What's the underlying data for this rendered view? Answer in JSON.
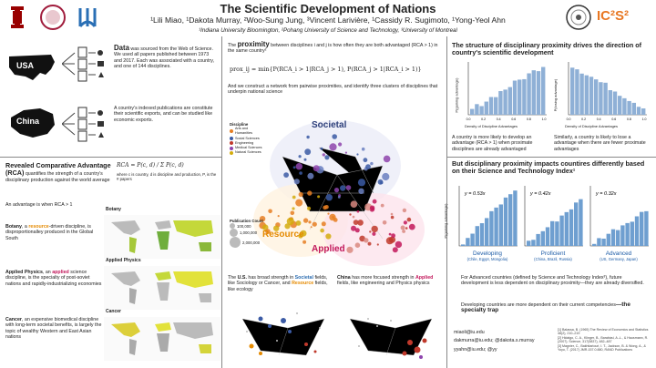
{
  "header": {
    "title": "The Scientific Development of Nations",
    "authors": "¹Lili Miao, ¹Dakota Murray, ²Woo-Sung Jung, ³Vincent Larivière, ¹Cassidy R. Sugimoto, ¹Yong-Yeol Ahn",
    "affiliations": "¹Indiana University Bloomington, ²Pohang University of Science and Technology, ³University of Montreal",
    "ic2s2": "IC²S²"
  },
  "data_section": {
    "lead": "Data",
    "text": " was sourced from the Web of Science. We used all papers published between 1973 and 2017. Each was associated with a country, and one of 144 disciplines.",
    "usa_label": "USA",
    "china_label": "China",
    "export_text": "A country's indexed publications are constitute their scientific exports, and can be studied like economic exports."
  },
  "rca_section": {
    "title": "Revealed Comparative Advantage (RCA)",
    "text": " quantifies the strength of a country's disciplinary production against the world average",
    "advantage": "An advantage is when RCA > 1",
    "formula_lhs": "RCA",
    "formula_frac": "P(c, d) / Σ P(c, d)",
    "formula_note": "where c is country, d is discipline and production, P, is the # papers",
    "botany_lead": "Botany",
    "botany_mid": ", a ",
    "botany_hl": "resource",
    "botany_text": "-driven discipline, is disproportionalley produced in the Global South",
    "physics_lead": "Applied Physics",
    "physics_mid": ", an ",
    "physics_hl": "applied",
    "physics_text": " science discipline, is the specialty of post-soviet nations and rapidly-industrializing economies",
    "cancer_lead": "Cancer",
    "cancer_text": ", an expensive biomedical discipline with long-term societal benefits, is largely the topic of wealthy Western and East Asian nations",
    "map_labels": [
      "Botany",
      "Applied Physics",
      "Cancer"
    ]
  },
  "proximity_section": {
    "lead": "The ",
    "hl": "proximity",
    "text": " between disciplines i and j is how often they are both advantaged (RCA > 1) in the same country²",
    "formula": "prox_ij = min{P(RCA_i > 1|RCA_j > 1), P(RCA_j > 1|RCA_i > 1)}",
    "network_text": "And we construct a network from pairwise proximities, and identify three clusters of disciplines that underpin national science",
    "cluster_labels": [
      "Societal",
      "Resource",
      "Applied"
    ],
    "legend_title": "Discipline",
    "legend_items": [
      "Arts and Humanities",
      "Social Sciences",
      "Engineering",
      "Medical Sciences",
      "Natural Sciences"
    ],
    "legend_colors": [
      "#e67e22",
      "#3b5ba5",
      "#c0392b",
      "#8e44ad",
      "#d4ac0d"
    ],
    "count_title": "Publication Count",
    "count_items": [
      "100,000",
      "1,000,000",
      "2,000,000"
    ],
    "us_lead": "The ",
    "us_country": "U.S.",
    "us_text1": " has broad strength in ",
    "us_hl1": "Societal",
    "us_text2": " fields, like Sociology or Cancer, and ",
    "us_hl2": "Resource",
    "us_text3": " fields, like ecology",
    "china_country": "China",
    "china_text1": " has more focused strength in ",
    "china_hl": "Applied",
    "china_text2": " fields, like engineering and Physics physics"
  },
  "structure_section": {
    "title": "The structure of disciplinary proximity drives the direction of country's scientific development",
    "caption_left": "A country is more likely to develop an advantage (RCA > 1) when proximate disciplines are already advantaged",
    "caption_right": "Similarly, a country is likely to lose a advantage when there are fewer proximate advantages",
    "ylabel_left": "P(gaining advantage)",
    "ylabel_right": "P(losing advantage)",
    "xlabel": "Density of Discipline Advantages",
    "xticks": [
      "0.0",
      "0.2",
      "0.4",
      "0.6",
      "0.8",
      "1.0"
    ]
  },
  "impact_section": {
    "title": "But disciplinary proximity impacts countires differently based on their Science and Technology Index¹",
    "panels": [
      {
        "name": "Developing",
        "sub": "(Chile, Egypt, Mongolia)",
        "eq": "y = 0.53x"
      },
      {
        "name": "Proficient",
        "sub": "(China, Brazil, Russia)",
        "eq": "y = 0.42x"
      },
      {
        "name": "Advanced",
        "sub": "(US, Germany, Japan)",
        "eq": "y = 0.32x"
      }
    ],
    "ylabel": "P(gaining advantage)",
    "text1": "For Advanced countries (defined by Science and Technology Index³), future development is less dependent on disciplinary proximity—they are already diversified.",
    "text2": "Developing countries are more dependent on their current competencies",
    "text2_hl": "—the specialty trap"
  },
  "contact": {
    "line1": "miaoli@iu.edu",
    "line2": "dakmurra@iu.edu; @dakota.s.murray",
    "line3": "yyahn@iu.edu; @yy"
  },
  "references": [
    "[1] Balassa, B. (1965) The Review of Economics and Statistics 48(2), 210–219",
    "[2] Hidalgo, C. A., Klinger, B., Barabási, A.-L., & Hausmann, R. (2007). Science, 317(5837), 482–487",
    "[3] Magnier, C., Bakhtiariouri, I. T., Jackson, B. & Wong, A., & Yoyo, T. (2017) JMR-157.0.880, RAND Publications"
  ]
}
